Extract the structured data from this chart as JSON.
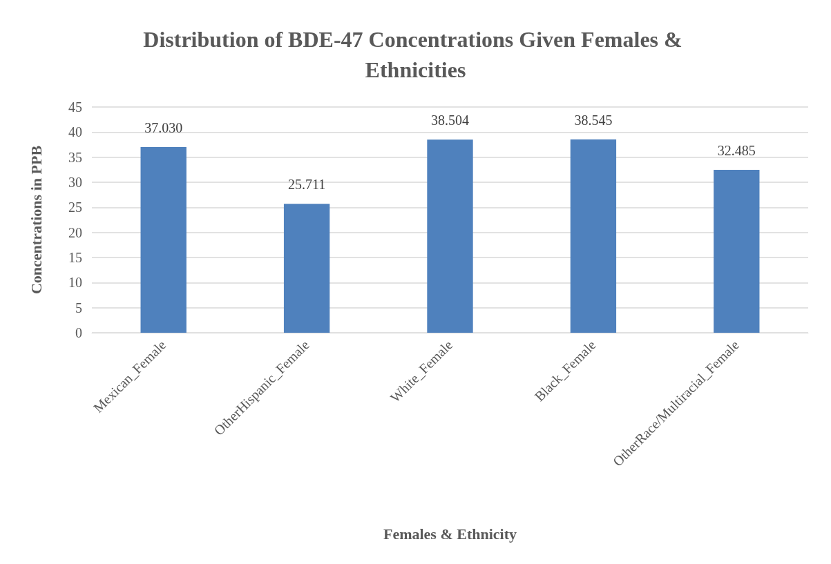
{
  "chart_data": {
    "type": "bar",
    "title": "Distribution of BDE-47 Concentrations Given Females & Ethnicities",
    "xlabel": "Females & Ethnicity",
    "ylabel": "Concentrations in PPB",
    "categories": [
      "Mexican_Female",
      "OtherHispanic_Female",
      "White_Female",
      "Black_Female",
      "OtherRace/Multiracial_Female"
    ],
    "values": [
      37.03,
      25.711,
      38.504,
      38.545,
      32.485
    ],
    "value_labels": [
      "37.030",
      "25.711",
      "38.504",
      "38.545",
      "32.485"
    ],
    "color": "#4f81bd",
    "ylim": [
      0,
      45
    ],
    "yticks": [
      0,
      5,
      10,
      15,
      20,
      25,
      30,
      35,
      40,
      45
    ],
    "grid": "y"
  }
}
